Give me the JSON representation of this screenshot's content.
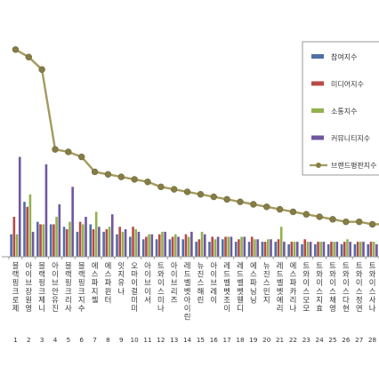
{
  "chart_data": {
    "type": "bar",
    "title": "",
    "xlabel": "",
    "ylabel": "",
    "grid": false,
    "legend_position": "right",
    "categories": [
      "블랙핑크 로제",
      "아이브 장원영",
      "블랙핑크 제니",
      "아이브 안유진",
      "블랙핑크 리사",
      "블랙핑크 지수",
      "에스파 지젤",
      "에스파 윈터",
      "잇지 유나",
      "오마이걸 미미",
      "아이브 이서",
      "트와이스 미나",
      "아이브 리즈",
      "레드벨벳 아이린",
      "뉴진스 해린",
      "아이브 레이",
      "레드벨벳 조이",
      "레드벨벳 웬디",
      "에스파 닝닝",
      "뉴진스 민지",
      "레드벨벳 예리",
      "에스파 카리나",
      "트와이스 모모",
      "트와이스 지효",
      "트와이스 채영",
      "트와이스 다현",
      "트와이스 정연",
      "트와이스 사나"
    ],
    "tick_labels": [
      "블랙핑크로제",
      "아이브장원영",
      "블랙핑크제니",
      "아이브안유진",
      "블랙핑크리사",
      "블랙핑크지수",
      "에스파지젤",
      "에스파윈터",
      "잇지유나",
      "오마이걸미미",
      "아이브이서",
      "트와이스미나",
      "아이브리즈",
      "레드벨벳아이린",
      "뉴진스해린",
      "아이브레이",
      "레드벨벳조이",
      "레드벨벳웬디",
      "에스파닝닝",
      "뉴진스민지",
      "레드벨벳예리",
      "에스파카리나",
      "트와이스모모",
      "트와이스지효",
      "트와이스채영",
      "트와이스다현",
      "트와이스정연",
      "트와이스사나"
    ],
    "ranks": [
      "1",
      "2",
      "3",
      "4",
      "5",
      "6",
      "7",
      "8",
      "9",
      "10",
      "11",
      "12",
      "13",
      "14",
      "15",
      "16",
      "17",
      "18",
      "19",
      "20",
      "21",
      "22",
      "23",
      "24",
      "25",
      "26",
      "27",
      "28"
    ],
    "ylim": [
      0,
      100
    ],
    "series": [
      {
        "name": "참여지수",
        "kind": "bar",
        "color": "#4f6fa6",
        "values": [
          9,
          22,
          14,
          13,
          12,
          10,
          13,
          10,
          9,
          8,
          7,
          7,
          7,
          7,
          6,
          6,
          7,
          6,
          6,
          6,
          6,
          5,
          5,
          5,
          5,
          5,
          5,
          5
        ]
      },
      {
        "name": "미디어지수",
        "kind": "bar",
        "color": "#b84a48",
        "values": [
          16,
          20,
          13,
          13,
          11,
          14,
          11,
          11,
          12,
          12,
          8,
          9,
          8,
          9,
          7,
          8,
          8,
          7,
          8,
          6,
          7,
          6,
          7,
          6,
          6,
          6,
          6,
          6
        ]
      },
      {
        "name": "소통지수",
        "kind": "bar",
        "color": "#92b250",
        "values": [
          9,
          25,
          13,
          16,
          14,
          13,
          18,
          12,
          10,
          11,
          9,
          10,
          9,
          8,
          10,
          7,
          8,
          8,
          7,
          7,
          12,
          6,
          6,
          6,
          6,
          7,
          6,
          6
        ]
      },
      {
        "name": "커뮤니티지수",
        "kind": "bar",
        "color": "#7057a0",
        "values": [
          40,
          10,
          37,
          21,
          28,
          16,
          12,
          17,
          11,
          10,
          9,
          10,
          8,
          10,
          9,
          8,
          8,
          8,
          7,
          7,
          6,
          6,
          6,
          6,
          6,
          6,
          6,
          5
        ]
      },
      {
        "name": "브랜드평판지수",
        "kind": "line",
        "color": "#a39b5f",
        "marker": "#857d45",
        "values": [
          83,
          80,
          75,
          43,
          42,
          40,
          34,
          33,
          32,
          31,
          30,
          28,
          27,
          26,
          25,
          24,
          23,
          22,
          21,
          20,
          19,
          18,
          17,
          16,
          15,
          14,
          14,
          13
        ]
      }
    ]
  }
}
